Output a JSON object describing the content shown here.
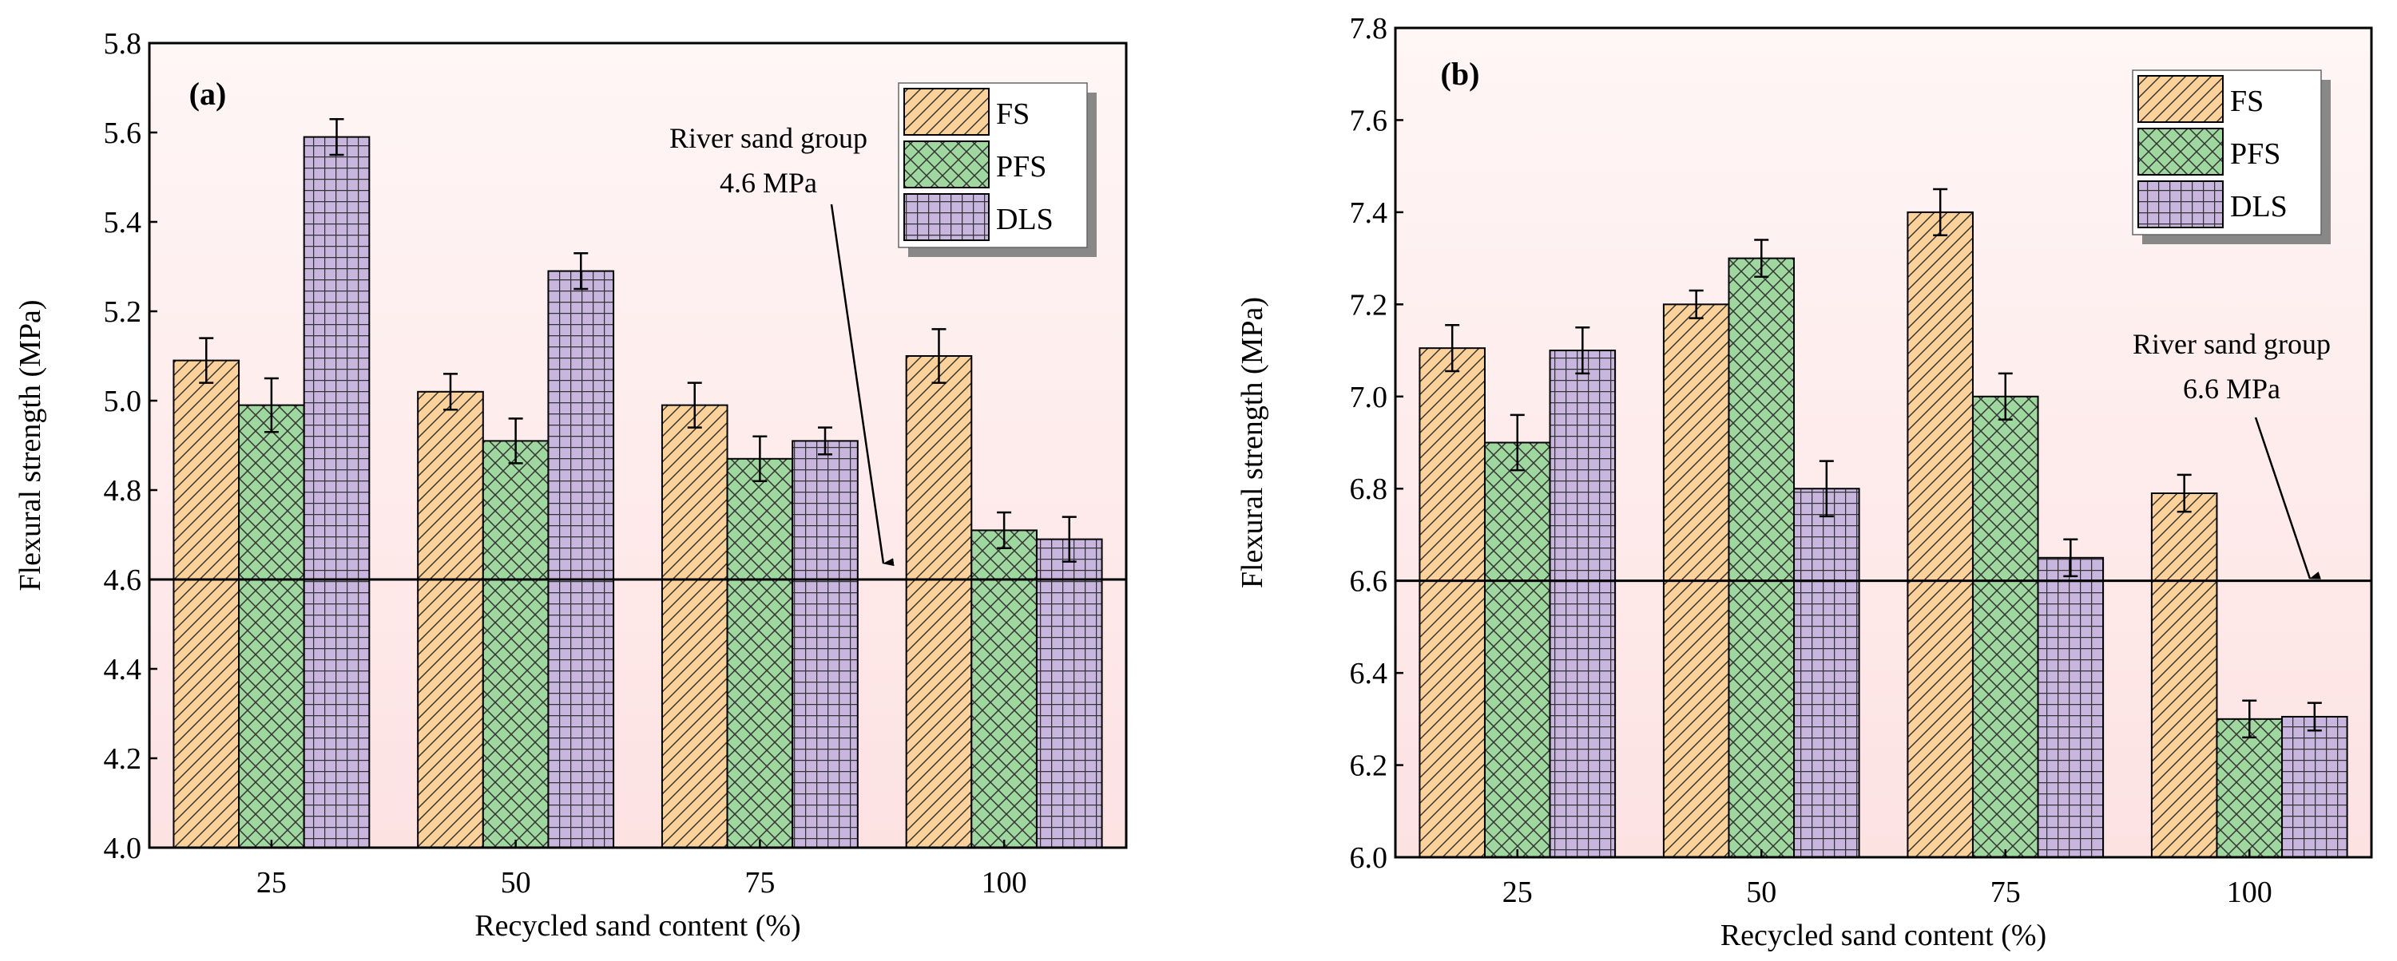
{
  "colors": {
    "FS": "#fdd29a",
    "PFS": "#9fd89f",
    "DLS": "#c8b6df"
  },
  "chart_data": [
    {
      "type": "bar",
      "panel_label": "(a)",
      "categories": [
        "25",
        "50",
        "75",
        "100"
      ],
      "xlabel": "Recycled sand content (%)",
      "ylabel": "Flexural strength (MPa)",
      "ylim": [
        4.0,
        5.8
      ],
      "yticks": [
        "4.0",
        "4.2",
        "4.4",
        "4.6",
        "4.8",
        "5.0",
        "5.2",
        "5.4",
        "5.6",
        "5.8"
      ],
      "legend": [
        "FS",
        "PFS",
        "DLS"
      ],
      "legend_position": "top-right",
      "series": [
        {
          "name": "FS",
          "values": [
            5.09,
            5.02,
            4.99,
            5.1
          ],
          "errors": [
            0.05,
            0.04,
            0.05,
            0.06
          ]
        },
        {
          "name": "PFS",
          "values": [
            4.99,
            4.91,
            4.87,
            4.71
          ],
          "errors": [
            0.06,
            0.05,
            0.05,
            0.04
          ]
        },
        {
          "name": "DLS",
          "values": [
            5.59,
            5.29,
            4.91,
            4.69
          ],
          "errors": [
            0.04,
            0.04,
            0.03,
            0.05
          ]
        }
      ],
      "reference": {
        "value": 4.6,
        "label_line1": "River sand group",
        "label_line2": "4.6 MPa"
      }
    },
    {
      "type": "bar",
      "panel_label": "(b)",
      "categories": [
        "25",
        "50",
        "75",
        "100"
      ],
      "xlabel": "Recycled sand content (%)",
      "ylabel": "Flexural strength (MPa)",
      "ylim": [
        6.0,
        7.8
      ],
      "yticks": [
        "6.0",
        "6.2",
        "6.4",
        "6.6",
        "6.8",
        "7.0",
        "7.2",
        "7.4",
        "7.6",
        "7.8"
      ],
      "legend": [
        "FS",
        "PFS",
        "DLS"
      ],
      "legend_position": "top-right",
      "series": [
        {
          "name": "FS",
          "values": [
            7.105,
            7.2,
            7.4,
            6.79
          ],
          "errors": [
            0.05,
            0.03,
            0.05,
            0.04
          ]
        },
        {
          "name": "PFS",
          "values": [
            6.9,
            7.3,
            7.0,
            6.3
          ],
          "errors": [
            0.06,
            0.04,
            0.05,
            0.04
          ]
        },
        {
          "name": "DLS",
          "values": [
            7.1,
            6.8,
            6.65,
            6.305
          ],
          "errors": [
            0.05,
            0.06,
            0.04,
            0.03
          ]
        }
      ],
      "reference": {
        "value": 6.6,
        "label_line1": "River sand group",
        "label_line2": "6.6 MPa"
      }
    }
  ]
}
